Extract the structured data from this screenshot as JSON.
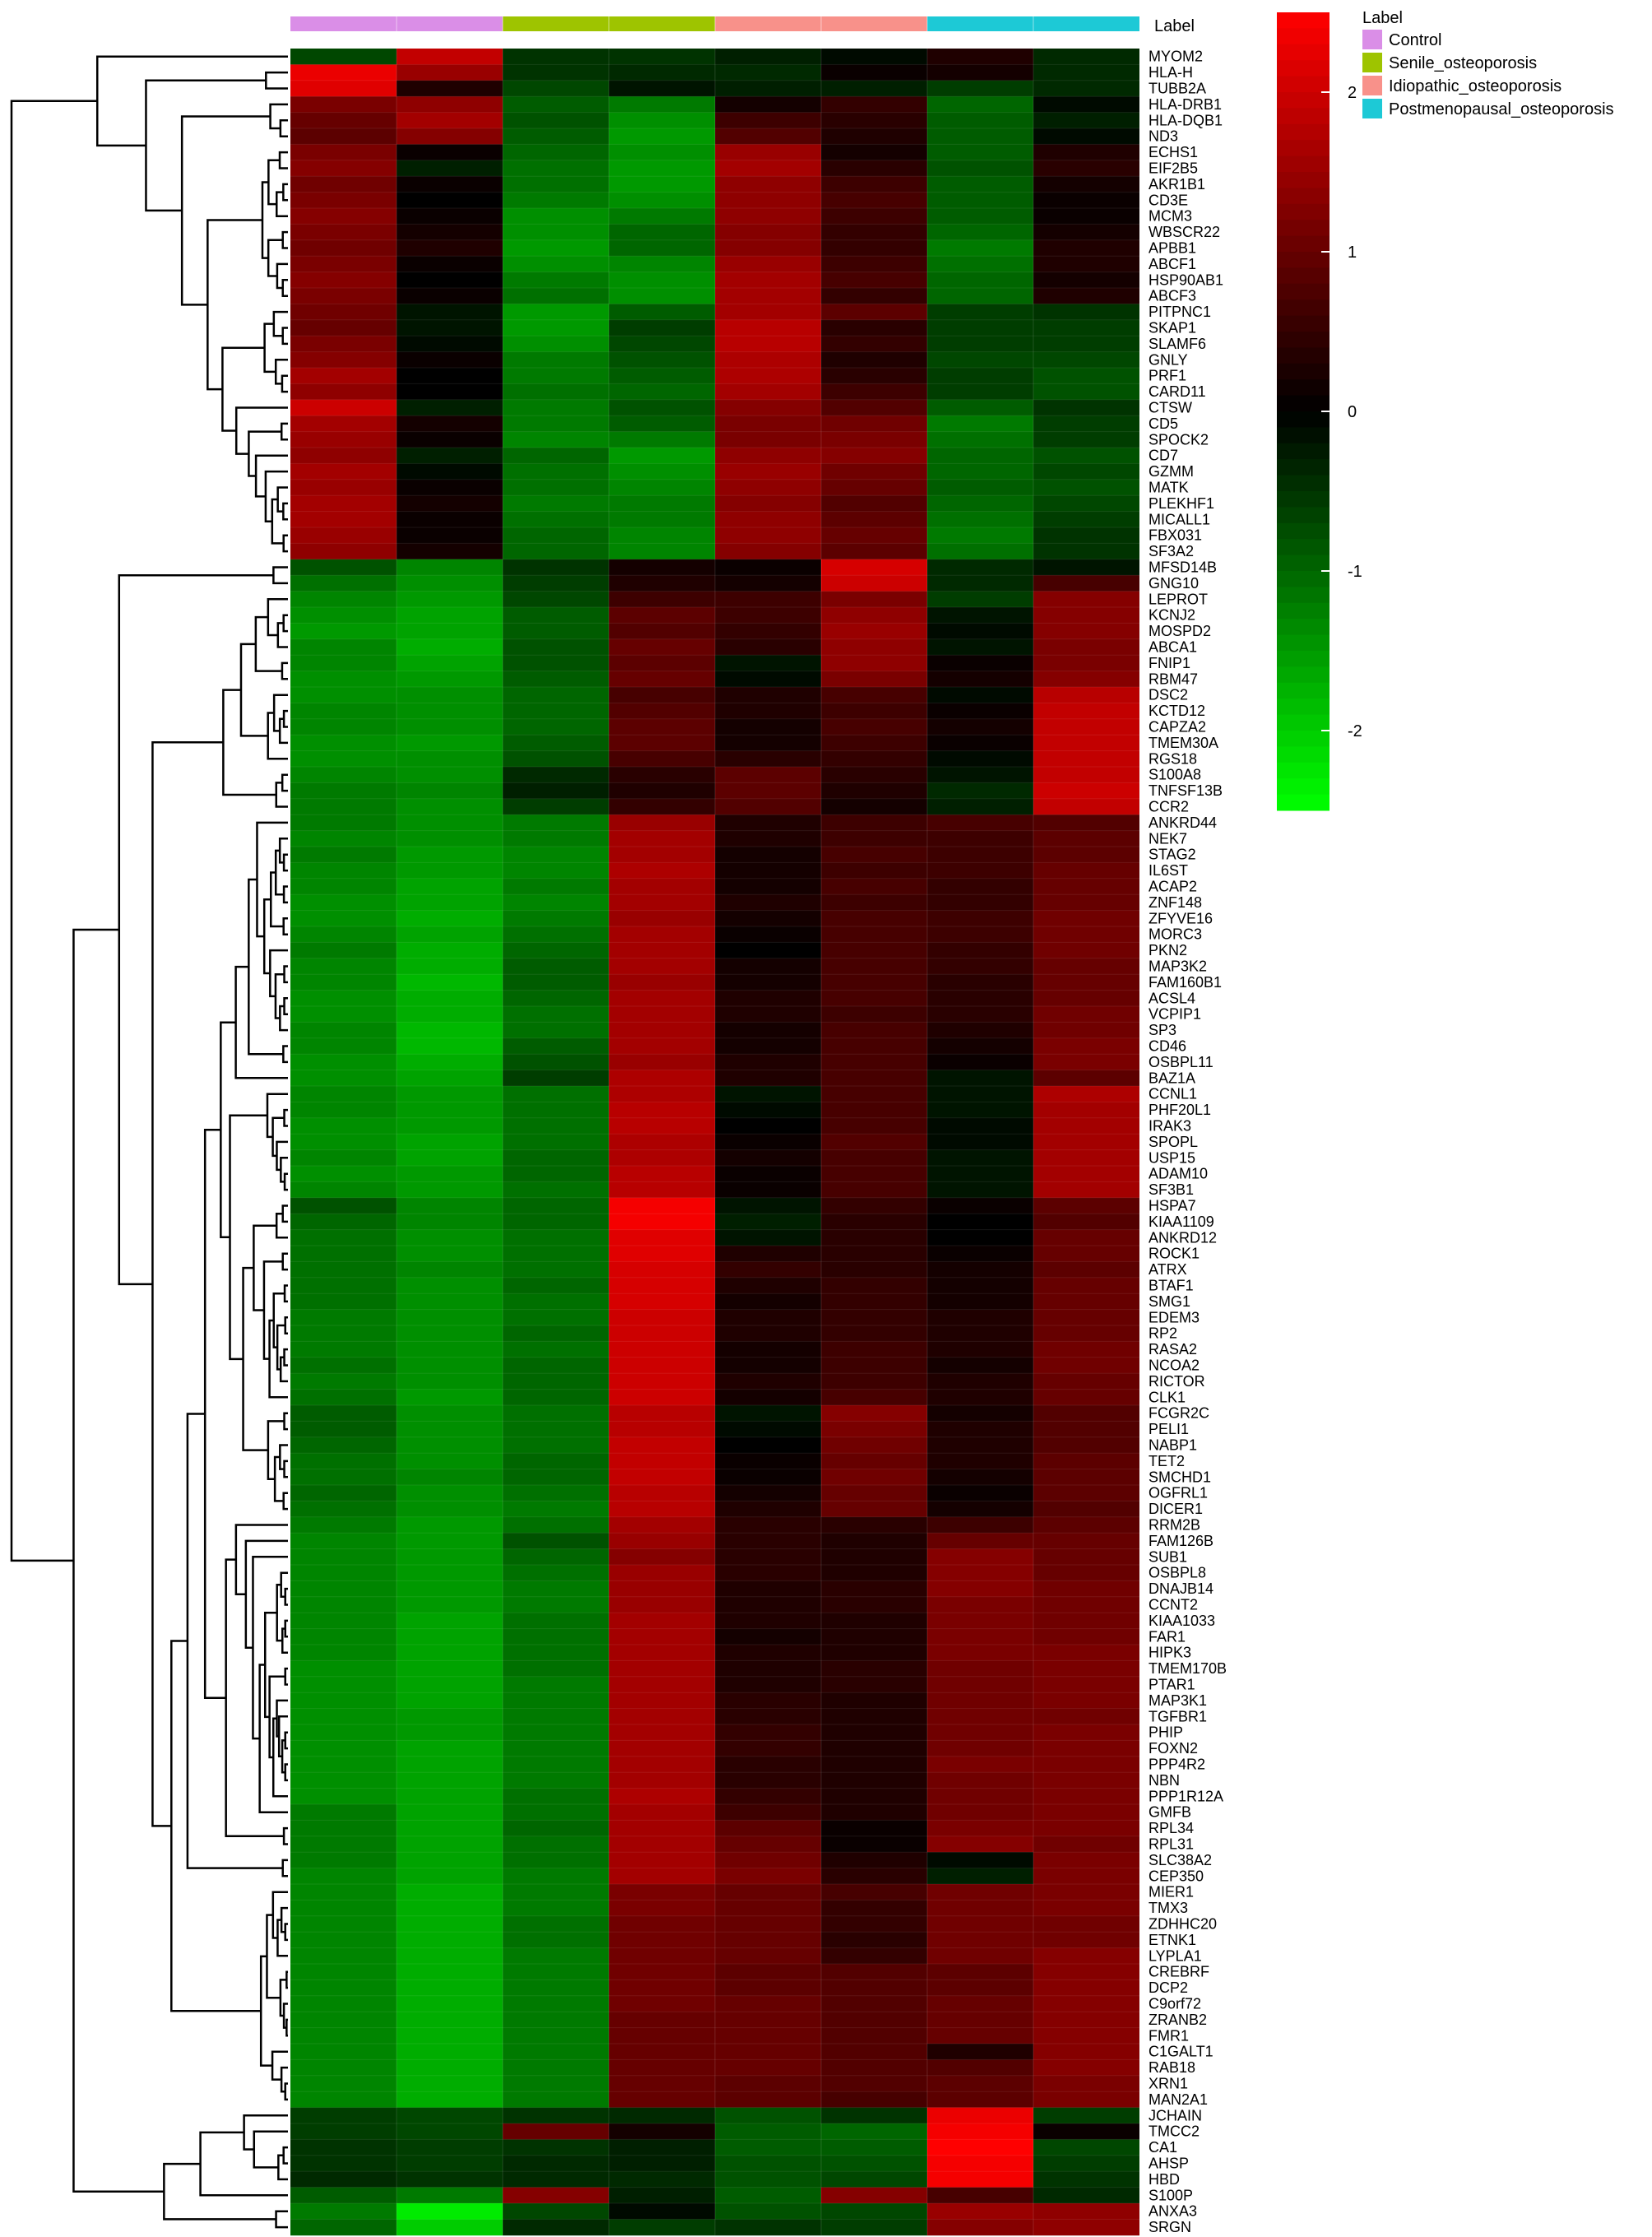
{
  "chart_data": {
    "type": "heatmap",
    "title": "",
    "xlabel": "",
    "ylabel": "",
    "label_title": "Label",
    "legend_title": "Label",
    "groups": [
      {
        "name": "Control",
        "color": "#da8ee7"
      },
      {
        "name": "Senile_osteoporosis",
        "color": "#9ec400"
      },
      {
        "name": "Idiopathic_osteoporosis",
        "color": "#f8918a"
      },
      {
        "name": "Postmenopausal_osteoporosis",
        "color": "#1dc9d6"
      }
    ],
    "column_groups": [
      0,
      0,
      1,
      1,
      2,
      2,
      3,
      3
    ],
    "color_scale": {
      "min": -2.5,
      "max": 2.5,
      "low_color": "#00ff00",
      "mid_color": "#000000",
      "high_color": "#ff0000",
      "ticks": [
        2,
        1,
        0,
        -1,
        -2
      ]
    },
    "rows": [
      "MYOM2",
      "HLA-H",
      "TUBB2A",
      "HLA-DRB1",
      "HLA-DQB1",
      "ND3",
      "ECHS1",
      "EIF2B5",
      "AKR1B1",
      "CD3E",
      "MCM3",
      "WBSCR22",
      "APBB1",
      "ABCF1",
      "HSP90AB1",
      "ABCF3",
      "PITPNC1",
      "SKAP1",
      "SLAMF6",
      "GNLY",
      "PRF1",
      "CARD11",
      "CTSW",
      "CD5",
      "SPOCK2",
      "CD7",
      "GZMM",
      "MATK",
      "PLEKHF1",
      "MICALL1",
      "FBX031",
      "SF3A2",
      "MFSD14B",
      "GNG10",
      "LEPROT",
      "KCNJ2",
      "MOSPD2",
      "ABCA1",
      "FNIP1",
      "RBM47",
      "DSC2",
      "KCTD12",
      "CAPZA2",
      "TMEM30A",
      "RGS18",
      "S100A8",
      "TNFSF13B",
      "CCR2",
      "ANKRD44",
      "NEK7",
      "STAG2",
      "IL6ST",
      "ACAP2",
      "ZNF148",
      "ZFYVE16",
      "MORC3",
      "PKN2",
      "MAP3K2",
      "FAM160B1",
      "ACSL4",
      "VCPIP1",
      "SP3",
      "CD46",
      "OSBPL11",
      "BAZ1A",
      "CCNL1",
      "PHF20L1",
      "IRAK3",
      "SPOPL",
      "USP15",
      "ADAM10",
      "SF3B1",
      "HSPA7",
      "KIAA1109",
      "ANKRD12",
      "ROCK1",
      "ATRX",
      "BTAF1",
      "SMG1",
      "EDEM3",
      "RP2",
      "RASA2",
      "NCOA2",
      "RICTOR",
      "CLK1",
      "FCGR2C",
      "PELI1",
      "NABP1",
      "TET2",
      "SMCHD1",
      "OGFRL1",
      "DICER1",
      "RRM2B",
      "FAM126B",
      "SUB1",
      "OSBPL8",
      "DNAJB14",
      "CCNT2",
      "KIAA1033",
      "FAR1",
      "HIPK3",
      "TMEM170B",
      "PTAR1",
      "MAP3K1",
      "TGFBR1",
      "PHIP",
      "FOXN2",
      "PPP4R2",
      "NBN",
      "PPP1R12A",
      "GMFB",
      "RPL34",
      "RPL31",
      "SLC38A2",
      "CEP350",
      "MIER1",
      "TMX3",
      "ZDHHC20",
      "ETNK1",
      "LYPLA1",
      "CREBRF",
      "DCP2",
      "C9orf72",
      "ZRANB2",
      "FMR1",
      "C1GALT1",
      "RAB18",
      "XRN1",
      "MAN2A1",
      "JCHAIN",
      "TMCC2",
      "CA1",
      "AHSP",
      "HBD",
      "S100P",
      "ANXA3",
      "SRGN"
    ],
    "values": [
      [
        -0.7,
        1.9,
        -0.5,
        -0.5,
        -0.3,
        -0.1,
        0.3,
        -0.4
      ],
      [
        2.3,
        1.5,
        -0.5,
        -0.4,
        -0.4,
        0.1,
        0.2,
        -0.4
      ],
      [
        2.2,
        0.3,
        -0.7,
        -0.2,
        -0.3,
        -0.3,
        -0.6,
        -0.4
      ],
      [
        1.2,
        1.4,
        -0.9,
        -1.2,
        0.2,
        0.5,
        -1.0,
        -0.1
      ],
      [
        1.0,
        1.6,
        -0.8,
        -1.4,
        0.6,
        0.4,
        -0.9,
        -0.3
      ],
      [
        0.9,
        1.3,
        -0.9,
        -1.5,
        0.8,
        0.3,
        -0.9,
        -0.1
      ],
      [
        1.2,
        0.1,
        -1.0,
        -1.4,
        1.5,
        0.2,
        -0.9,
        0.3
      ],
      [
        1.3,
        -0.3,
        -1.1,
        -1.5,
        1.6,
        0.4,
        -0.8,
        0.4
      ],
      [
        1.1,
        0.1,
        -1.1,
        -1.5,
        1.4,
        0.6,
        -0.9,
        0.2
      ],
      [
        1.2,
        0.0,
        -1.2,
        -1.4,
        1.4,
        0.7,
        -0.9,
        0.1
      ],
      [
        1.3,
        0.1,
        -1.4,
        -1.2,
        1.4,
        0.6,
        -0.9,
        0.1
      ],
      [
        1.2,
        0.2,
        -1.4,
        -1.0,
        1.3,
        0.5,
        -1.0,
        0.2
      ],
      [
        1.1,
        0.3,
        -1.5,
        -1.0,
        1.3,
        0.5,
        -1.2,
        0.3
      ],
      [
        1.2,
        0.1,
        -1.4,
        -1.3,
        1.5,
        0.6,
        -1.1,
        0.3
      ],
      [
        1.3,
        0.0,
        -1.2,
        -1.4,
        1.6,
        0.7,
        -1.0,
        0.2
      ],
      [
        1.2,
        0.1,
        -1.1,
        -1.4,
        1.6,
        0.5,
        -1.0,
        0.3
      ],
      [
        1.1,
        -0.2,
        -1.5,
        -0.9,
        1.6,
        0.9,
        -0.6,
        -0.5
      ],
      [
        1.0,
        -0.2,
        -1.5,
        -0.6,
        1.8,
        0.4,
        -0.6,
        -0.6
      ],
      [
        1.2,
        -0.1,
        -1.4,
        -0.7,
        1.8,
        0.5,
        -0.6,
        -0.6
      ],
      [
        1.3,
        0.1,
        -1.2,
        -0.8,
        1.7,
        0.3,
        -0.7,
        -0.7
      ],
      [
        1.6,
        0.0,
        -1.2,
        -0.9,
        1.7,
        0.4,
        -0.6,
        -0.8
      ],
      [
        1.4,
        0.0,
        -1.1,
        -1.0,
        1.6,
        0.6,
        -0.6,
        -0.8
      ],
      [
        2.0,
        -0.3,
        -1.2,
        -0.8,
        1.3,
        0.8,
        -0.9,
        -0.5
      ],
      [
        1.6,
        0.2,
        -1.2,
        -0.9,
        1.2,
        1.1,
        -1.2,
        -0.6
      ],
      [
        1.5,
        0.1,
        -1.3,
        -1.2,
        1.2,
        1.2,
        -1.1,
        -0.6
      ],
      [
        1.4,
        -0.3,
        -1.0,
        -1.5,
        1.4,
        1.3,
        -1.0,
        -0.8
      ],
      [
        1.6,
        -0.1,
        -1.1,
        -1.4,
        1.5,
        1.1,
        -1.0,
        -0.7
      ],
      [
        1.5,
        0.1,
        -1.1,
        -1.3,
        1.4,
        1.0,
        -0.9,
        -0.8
      ],
      [
        1.6,
        0.2,
        -1.2,
        -1.2,
        1.3,
        0.8,
        -1.0,
        -0.7
      ],
      [
        1.6,
        0.1,
        -1.1,
        -1.2,
        1.4,
        0.9,
        -1.1,
        -0.6
      ],
      [
        1.5,
        0.1,
        -1.0,
        -1.3,
        1.4,
        1.0,
        -1.2,
        -0.5
      ],
      [
        1.4,
        0.2,
        -1.0,
        -1.3,
        1.3,
        0.9,
        -1.1,
        -0.5
      ],
      [
        -0.8,
        -1.3,
        -0.5,
        0.2,
        0.1,
        2.1,
        -0.4,
        -0.2
      ],
      [
        -1.1,
        -1.4,
        -0.6,
        0.3,
        0.2,
        2.0,
        -0.4,
        0.7
      ],
      [
        -1.3,
        -1.5,
        -0.7,
        0.6,
        0.6,
        1.2,
        -0.6,
        1.3
      ],
      [
        -1.4,
        -1.6,
        -0.9,
        0.9,
        0.6,
        1.4,
        -0.2,
        1.3
      ],
      [
        -1.5,
        -1.6,
        -0.9,
        0.8,
        0.5,
        1.5,
        -0.1,
        1.3
      ],
      [
        -1.3,
        -1.7,
        -0.8,
        1.0,
        0.4,
        1.4,
        -0.2,
        1.2
      ],
      [
        -1.3,
        -1.6,
        -0.8,
        0.9,
        -0.2,
        1.4,
        0.1,
        1.2
      ],
      [
        -1.4,
        -1.5,
        -0.9,
        1.0,
        -0.1,
        1.2,
        0.2,
        1.3
      ],
      [
        -1.4,
        -1.4,
        -1.0,
        0.7,
        0.3,
        0.7,
        -0.1,
        1.8
      ],
      [
        -1.3,
        -1.4,
        -1.0,
        0.8,
        0.3,
        0.6,
        0.1,
        1.9
      ],
      [
        -1.3,
        -1.4,
        -1.0,
        0.9,
        0.2,
        0.7,
        0.2,
        1.9
      ],
      [
        -1.4,
        -1.5,
        -0.9,
        0.9,
        0.2,
        0.6,
        0.1,
        1.9
      ],
      [
        -1.4,
        -1.4,
        -0.8,
        0.7,
        0.4,
        0.5,
        -0.1,
        1.9
      ],
      [
        -1.3,
        -1.4,
        -0.4,
        0.4,
        0.9,
        0.4,
        -0.2,
        1.9
      ],
      [
        -1.2,
        -1.3,
        -0.3,
        0.3,
        0.9,
        0.3,
        -0.4,
        2.0
      ],
      [
        -1.2,
        -1.4,
        -0.6,
        0.5,
        0.8,
        0.2,
        -0.3,
        1.9
      ],
      [
        -1.2,
        -1.4,
        -1.2,
        1.5,
        0.3,
        0.6,
        0.7,
        0.8
      ],
      [
        -1.3,
        -1.4,
        -1.2,
        1.6,
        0.3,
        0.6,
        0.6,
        0.9
      ],
      [
        -1.2,
        -1.5,
        -1.3,
        1.6,
        0.2,
        0.7,
        0.6,
        0.9
      ],
      [
        -1.3,
        -1.5,
        -1.3,
        1.7,
        0.2,
        0.6,
        0.6,
        1.0
      ],
      [
        -1.3,
        -1.6,
        -1.2,
        1.6,
        0.2,
        0.7,
        0.5,
        1.0
      ],
      [
        -1.4,
        -1.6,
        -1.3,
        1.6,
        0.3,
        0.6,
        0.5,
        1.0
      ],
      [
        -1.4,
        -1.7,
        -1.2,
        1.5,
        0.2,
        0.7,
        0.6,
        1.1
      ],
      [
        -1.3,
        -1.6,
        -1.1,
        1.6,
        0.1,
        0.7,
        0.6,
        1.1
      ],
      [
        -1.2,
        -1.7,
        -1.0,
        1.6,
        0.0,
        0.7,
        0.5,
        1.1
      ],
      [
        -1.3,
        -1.7,
        -0.9,
        1.6,
        0.2,
        0.7,
        0.5,
        1.0
      ],
      [
        -1.3,
        -1.8,
        -0.9,
        1.5,
        0.2,
        0.7,
        0.4,
        1.0
      ],
      [
        -1.4,
        -1.7,
        -1.0,
        1.6,
        0.3,
        0.7,
        0.4,
        1.0
      ],
      [
        -1.4,
        -1.7,
        -1.1,
        1.6,
        0.3,
        0.6,
        0.4,
        1.1
      ],
      [
        -1.3,
        -1.8,
        -1.1,
        1.6,
        0.2,
        0.7,
        0.3,
        1.1
      ],
      [
        -1.3,
        -1.8,
        -0.9,
        1.6,
        0.2,
        0.7,
        0.2,
        1.2
      ],
      [
        -1.4,
        -1.7,
        -0.8,
        1.5,
        0.3,
        0.7,
        0.1,
        1.2
      ],
      [
        -1.4,
        -1.6,
        -0.6,
        1.7,
        0.3,
        0.7,
        -0.2,
        0.9
      ],
      [
        -1.3,
        -1.5,
        -1.1,
        1.7,
        -0.2,
        0.7,
        -0.2,
        1.7
      ],
      [
        -1.3,
        -1.5,
        -1.1,
        1.8,
        -0.1,
        0.7,
        -0.2,
        1.6
      ],
      [
        -1.4,
        -1.5,
        -1.1,
        1.8,
        0.0,
        0.7,
        -0.1,
        1.6
      ],
      [
        -1.4,
        -1.6,
        -1.1,
        1.7,
        0.1,
        0.8,
        -0.1,
        1.6
      ],
      [
        -1.3,
        -1.6,
        -1.0,
        1.7,
        0.2,
        0.7,
        -0.2,
        1.6
      ],
      [
        -1.4,
        -1.5,
        -1.0,
        1.8,
        0.1,
        0.7,
        -0.2,
        1.6
      ],
      [
        -1.3,
        -1.5,
        -1.1,
        1.8,
        0.1,
        0.7,
        -0.2,
        1.6
      ],
      [
        -0.8,
        -1.3,
        -1.0,
        2.4,
        -0.2,
        0.5,
        0.1,
        0.9
      ],
      [
        -1.0,
        -1.3,
        -1.0,
        2.4,
        -0.3,
        0.4,
        0.0,
        0.8
      ],
      [
        -1.1,
        -1.4,
        -1.1,
        2.2,
        -0.2,
        0.4,
        0.0,
        1.0
      ],
      [
        -1.1,
        -1.4,
        -1.1,
        2.2,
        0.3,
        0.4,
        0.1,
        1.0
      ],
      [
        -1.1,
        -1.3,
        -1.1,
        2.1,
        0.5,
        0.4,
        0.2,
        0.9
      ],
      [
        -1.1,
        -1.4,
        -1.0,
        2.1,
        0.3,
        0.5,
        0.2,
        1.0
      ],
      [
        -1.1,
        -1.4,
        -1.1,
        2.1,
        0.2,
        0.5,
        0.2,
        1.0
      ],
      [
        -1.2,
        -1.4,
        -1.1,
        2.0,
        0.3,
        0.5,
        0.3,
        1.0
      ],
      [
        -1.2,
        -1.4,
        -1.0,
        2.0,
        0.3,
        0.5,
        0.3,
        1.0
      ],
      [
        -1.2,
        -1.4,
        -1.1,
        2.0,
        0.2,
        0.6,
        0.3,
        1.1
      ],
      [
        -1.1,
        -1.4,
        -1.0,
        2.0,
        0.2,
        0.6,
        0.2,
        1.1
      ],
      [
        -1.2,
        -1.4,
        -1.0,
        2.0,
        0.3,
        0.6,
        0.3,
        1.0
      ],
      [
        -1.1,
        -1.5,
        -1.0,
        2.0,
        0.2,
        0.7,
        0.3,
        1.0
      ],
      [
        -0.9,
        -1.4,
        -1.1,
        1.8,
        -0.2,
        1.3,
        0.2,
        0.8
      ],
      [
        -0.9,
        -1.4,
        -1.1,
        1.8,
        -0.1,
        1.2,
        0.3,
        0.8
      ],
      [
        -1.0,
        -1.4,
        -1.1,
        1.9,
        0.0,
        1.1,
        0.3,
        0.8
      ],
      [
        -1.1,
        -1.4,
        -1.0,
        1.9,
        0.1,
        1.0,
        0.3,
        0.9
      ],
      [
        -1.1,
        -1.3,
        -1.0,
        1.9,
        0.1,
        1.1,
        0.2,
        0.9
      ],
      [
        -1.0,
        -1.4,
        -1.1,
        1.8,
        0.2,
        1.0,
        0.1,
        0.9
      ],
      [
        -1.1,
        -1.4,
        -1.2,
        1.8,
        0.3,
        1.0,
        0.2,
        0.8
      ],
      [
        -1.2,
        -1.5,
        -1.1,
        1.6,
        0.4,
        0.4,
        0.6,
        0.9
      ],
      [
        -1.3,
        -1.5,
        -0.8,
        1.5,
        0.4,
        0.3,
        1.0,
        1.0
      ],
      [
        -1.3,
        -1.5,
        -1.0,
        1.3,
        0.4,
        0.3,
        1.3,
        1.0
      ],
      [
        -1.3,
        -1.5,
        -1.1,
        1.5,
        0.4,
        0.3,
        1.3,
        1.0
      ],
      [
        -1.3,
        -1.5,
        -1.2,
        1.5,
        0.3,
        0.4,
        1.3,
        1.1
      ],
      [
        -1.3,
        -1.5,
        -1.2,
        1.5,
        0.3,
        0.4,
        1.2,
        1.1
      ],
      [
        -1.3,
        -1.6,
        -1.1,
        1.6,
        0.3,
        0.3,
        1.2,
        1.1
      ],
      [
        -1.3,
        -1.6,
        -1.1,
        1.6,
        0.2,
        0.3,
        1.2,
        1.1
      ],
      [
        -1.3,
        -1.6,
        -1.1,
        1.6,
        0.3,
        0.3,
        1.2,
        1.2
      ],
      [
        -1.4,
        -1.6,
        -1.1,
        1.6,
        0.3,
        0.4,
        1.1,
        1.2
      ],
      [
        -1.4,
        -1.6,
        -1.2,
        1.6,
        0.3,
        0.4,
        1.1,
        1.2
      ],
      [
        -1.4,
        -1.6,
        -1.2,
        1.6,
        0.4,
        0.3,
        1.1,
        1.2
      ],
      [
        -1.4,
        -1.5,
        -1.2,
        1.6,
        0.4,
        0.3,
        1.1,
        1.1
      ],
      [
        -1.4,
        -1.5,
        -1.2,
        1.6,
        0.5,
        0.3,
        1.1,
        1.2
      ],
      [
        -1.4,
        -1.6,
        -1.2,
        1.6,
        0.5,
        0.3,
        1.1,
        1.2
      ],
      [
        -1.4,
        -1.6,
        -1.2,
        1.6,
        0.4,
        0.3,
        1.2,
        1.2
      ],
      [
        -1.4,
        -1.6,
        -1.2,
        1.6,
        0.4,
        0.3,
        1.1,
        1.2
      ],
      [
        -1.4,
        -1.6,
        -1.1,
        1.7,
        0.5,
        0.3,
        1.1,
        1.2
      ],
      [
        -1.2,
        -1.6,
        -1.1,
        1.6,
        0.6,
        0.3,
        1.1,
        1.2
      ],
      [
        -1.2,
        -1.6,
        -1.0,
        1.6,
        0.9,
        0.1,
        1.2,
        1.2
      ],
      [
        -1.2,
        -1.6,
        -1.1,
        1.6,
        1.0,
        0.1,
        1.3,
        1.1
      ],
      [
        -1.2,
        -1.6,
        -1.1,
        1.6,
        1.1,
        0.3,
        -0.1,
        1.2
      ],
      [
        -1.3,
        -1.6,
        -1.2,
        1.6,
        1.2,
        0.4,
        -0.3,
        1.2
      ],
      [
        -1.3,
        -1.7,
        -1.2,
        1.2,
        1.0,
        0.7,
        1.1,
        1.2
      ],
      [
        -1.3,
        -1.7,
        -1.2,
        1.2,
        1.0,
        0.5,
        1.1,
        1.2
      ],
      [
        -1.3,
        -1.7,
        -1.1,
        1.1,
        1.0,
        0.5,
        1.1,
        1.1
      ],
      [
        -1.3,
        -1.7,
        -1.1,
        1.1,
        1.0,
        0.4,
        1.1,
        1.1
      ],
      [
        -1.3,
        -1.7,
        -1.2,
        1.1,
        1.0,
        0.5,
        1.1,
        1.3
      ],
      [
        -1.3,
        -1.7,
        -1.2,
        1.1,
        0.9,
        0.8,
        0.9,
        1.3
      ],
      [
        -1.3,
        -1.7,
        -1.2,
        1.1,
        0.9,
        0.8,
        0.9,
        1.3
      ],
      [
        -1.3,
        -1.7,
        -1.2,
        1.1,
        1.0,
        0.8,
        1.0,
        1.3
      ],
      [
        -1.3,
        -1.7,
        -1.2,
        1.0,
        1.0,
        0.8,
        1.0,
        1.3
      ],
      [
        -1.3,
        -1.7,
        -1.2,
        1.0,
        1.0,
        0.8,
        1.0,
        1.3
      ],
      [
        -1.3,
        -1.7,
        -1.2,
        1.0,
        1.0,
        0.8,
        0.3,
        1.3
      ],
      [
        -1.3,
        -1.7,
        -1.2,
        1.0,
        1.0,
        0.8,
        0.8,
        1.3
      ],
      [
        -1.3,
        -1.7,
        -1.2,
        1.0,
        0.9,
        0.8,
        0.9,
        1.2
      ],
      [
        -1.3,
        -1.7,
        -1.2,
        1.0,
        0.9,
        0.7,
        0.9,
        1.2
      ],
      [
        -0.6,
        -0.7,
        -0.5,
        -0.4,
        -0.8,
        -0.5,
        2.3,
        -0.6
      ],
      [
        -0.6,
        -0.7,
        1.0,
        0.2,
        -0.9,
        -1.0,
        2.4,
        0.1
      ],
      [
        -0.5,
        -0.6,
        -0.5,
        -0.3,
        -0.9,
        -0.9,
        2.5,
        -0.7
      ],
      [
        -0.5,
        -0.6,
        -0.4,
        -0.3,
        -0.8,
        -0.8,
        2.4,
        -0.6
      ],
      [
        -0.4,
        -0.5,
        -0.4,
        -0.4,
        -0.8,
        -0.7,
        2.4,
        -0.5
      ],
      [
        -0.9,
        -1.2,
        1.3,
        -0.3,
        -0.9,
        1.3,
        0.7,
        -0.4
      ],
      [
        -1.2,
        -2.3,
        -0.7,
        -0.1,
        -0.8,
        -0.7,
        1.5,
        1.4
      ],
      [
        -1.0,
        -2.0,
        -0.4,
        -0.6,
        -0.5,
        -0.6,
        1.3,
        1.4
      ]
    ]
  }
}
